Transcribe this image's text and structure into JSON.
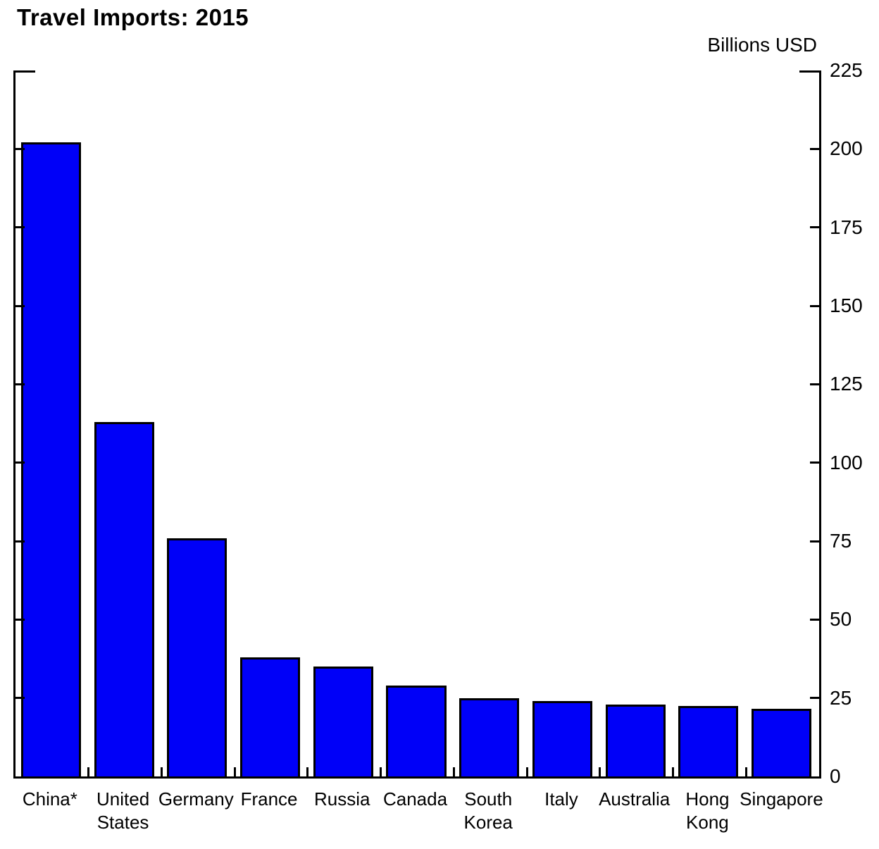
{
  "title": "Travel Imports: 2015",
  "unit_label": "Billions USD",
  "colors": {
    "bar_fill": "#0000f8",
    "bar_border": "#000000",
    "axis": "#000000",
    "text": "#000000",
    "background": "#ffffff"
  },
  "chart_data": {
    "type": "bar",
    "title": "Travel Imports: 2015",
    "xlabel": "",
    "ylabel": "Billions USD",
    "categories": [
      "China*",
      "United States",
      "Germany",
      "France",
      "Russia",
      "Canada",
      "South Korea",
      "Italy",
      "Australia",
      "Hong Kong",
      "Singapore"
    ],
    "values": [
      202,
      113,
      76,
      38,
      35,
      29,
      25,
      24,
      23,
      22.5,
      21.5
    ],
    "ylim": [
      0,
      225
    ],
    "yticks": [
      0,
      25,
      50,
      75,
      100,
      125,
      150,
      175,
      200,
      225
    ],
    "ytick_interval": 25,
    "axis_labels_side": "right",
    "grid": false,
    "legend": false
  }
}
